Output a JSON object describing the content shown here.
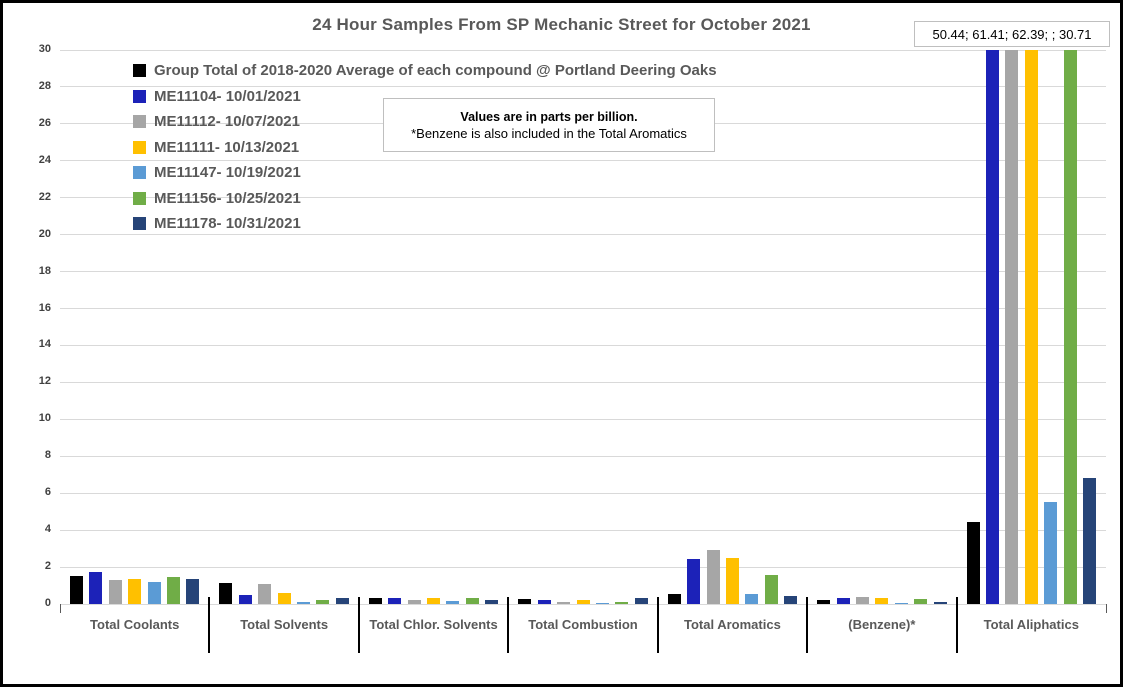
{
  "chart_data": {
    "type": "bar",
    "title": "24 Hour Samples From SP Mechanic Street for October 2021",
    "callout": "50.44; 61.41; 62.39; ; 30.71",
    "note": {
      "line1": "Values are in parts per billion.",
      "line2": "*Benzene is also included in the Total Aromatics"
    },
    "ylim": [
      0,
      30
    ],
    "ytick_step": 2,
    "grid": true,
    "legend_position": "top-left-inside",
    "unit": "parts per billion",
    "categories": [
      "Total Coolants",
      "Total Solvents",
      "Total Chlor. Solvents",
      "Total Combustion",
      "Total Aromatics",
      "(Benzene)*",
      "Total Aliphatics"
    ],
    "series": [
      {
        "name": "Group Total of 2018-2020 Average of each compound @ Portland Deering Oaks",
        "color": "#000000",
        "values": [
          1.5,
          1.15,
          0.35,
          0.25,
          0.55,
          0.2,
          4.45
        ]
      },
      {
        "name": "ME11104- 10/01/2021",
        "color": "#1c22b8",
        "values": [
          1.75,
          0.5,
          0.3,
          0.2,
          2.45,
          0.3,
          50.44
        ]
      },
      {
        "name": "ME11112- 10/07/2021",
        "color": "#a6a6a6",
        "values": [
          1.3,
          1.1,
          0.2,
          0.1,
          2.95,
          0.4,
          61.41
        ]
      },
      {
        "name": "ME11111- 10/13/2021",
        "color": "#ffc000",
        "values": [
          1.35,
          0.6,
          0.3,
          0.2,
          2.5,
          0.35,
          62.39
        ]
      },
      {
        "name": "ME11147- 10/19/2021",
        "color": "#5b9bd5",
        "values": [
          1.2,
          0.1,
          0.15,
          0.05,
          0.55,
          0.07,
          5.55
        ]
      },
      {
        "name": "ME11156- 10/25/2021",
        "color": "#70ad47",
        "values": [
          1.45,
          0.2,
          0.3,
          0.1,
          1.55,
          0.25,
          30.71
        ]
      },
      {
        "name": "ME11178- 10/31/2021",
        "color": "#264478",
        "values": [
          1.35,
          0.3,
          0.2,
          0.3,
          0.45,
          0.1,
          6.85
        ]
      }
    ]
  }
}
